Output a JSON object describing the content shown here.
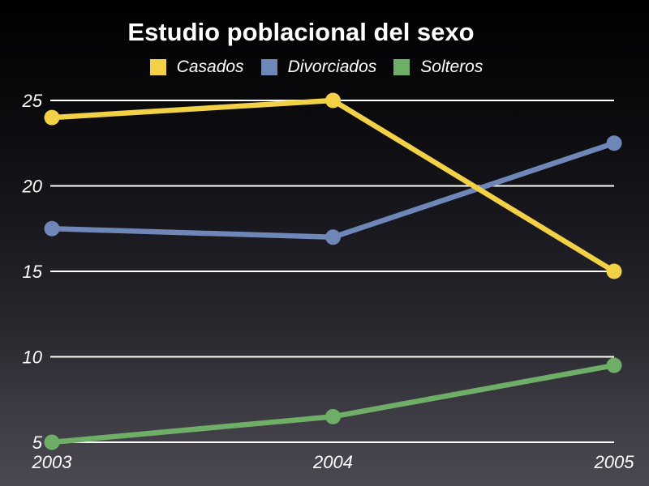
{
  "chart_data": {
    "type": "line",
    "title": "Estudio poblacional del sexo",
    "x_categories": [
      "2003",
      "2004",
      "2005"
    ],
    "series": [
      {
        "name": "Casados",
        "color": "#F2D147",
        "values": [
          24,
          25,
          15
        ]
      },
      {
        "name": "Divorciados",
        "color": "#6E86B8",
        "values": [
          17.5,
          17,
          22.5
        ]
      },
      {
        "name": "Solteros",
        "color": "#6EAE66",
        "values": [
          5,
          6.5,
          9.5
        ]
      }
    ],
    "y_ticks": [
      25,
      20,
      15,
      10,
      5
    ],
    "ylim": [
      5,
      25
    ],
    "grid": true,
    "legend_position": "top",
    "gridline_color": "#FFFFFF",
    "text_color": "#FFFFFF",
    "background_top": "#000000",
    "background_bottom": "#4B4852"
  }
}
